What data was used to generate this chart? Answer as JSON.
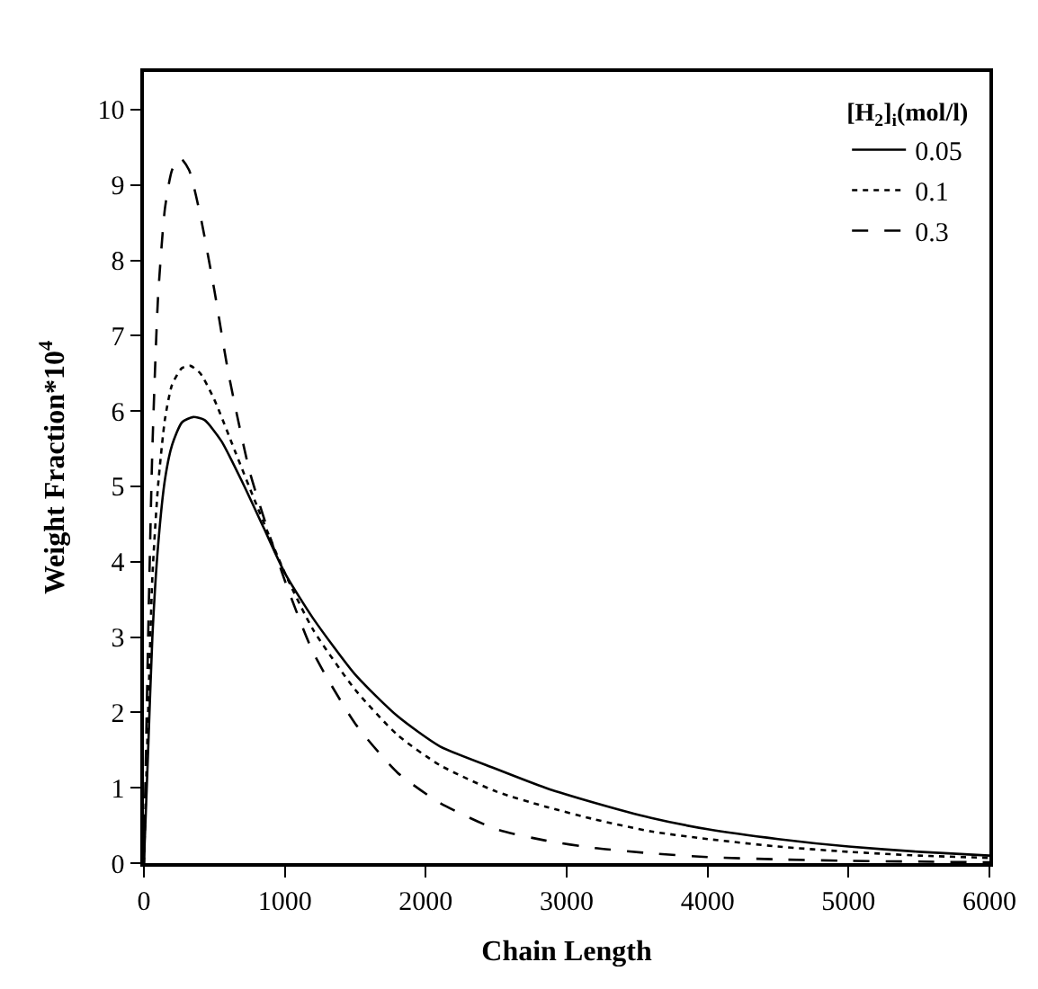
{
  "chart_data": {
    "type": "line",
    "xlabel": "Chain Length",
    "ylabel": "Weight Fraction*10$^{4}$",
    "legend_title": "[H$_{2}$]$_{i}$(mol/l)",
    "legend": "top right",
    "grid": false,
    "marker": "none",
    "xlim": [
      0,
      6000
    ],
    "xticks": [
      0,
      1000,
      2000,
      3000,
      4000,
      5000,
      6000
    ],
    "ylim": [
      0,
      10.5
    ],
    "yticks": [
      0,
      1,
      2,
      3,
      4,
      5,
      6,
      7,
      8,
      9,
      10
    ],
    "series": [
      {
        "name": "0.05",
        "color": "#000000",
        "line_style": "solid",
        "x": [
          0,
          30,
          60,
          100,
          150,
          200,
          270,
          350,
          430,
          550,
          700,
          850,
          1000,
          1200,
          1500,
          1800,
          2100,
          2500,
          2850,
          3200,
          3600,
          4000,
          4500,
          5000,
          5500,
          6000
        ],
        "values": [
          0,
          1.5,
          3.0,
          4.2,
          5.1,
          5.55,
          5.85,
          5.92,
          5.88,
          5.6,
          5.05,
          4.45,
          3.85,
          3.25,
          2.5,
          1.95,
          1.55,
          1.25,
          1.0,
          0.8,
          0.6,
          0.45,
          0.32,
          0.22,
          0.15,
          0.1
        ]
      },
      {
        "name": "0.1",
        "color": "#000000",
        "line_style": "dotted",
        "x": [
          0,
          30,
          60,
          100,
          150,
          200,
          270,
          330,
          400,
          500,
          650,
          800,
          1000,
          1200,
          1500,
          1800,
          2100,
          2500,
          2850,
          3200,
          3600,
          4000,
          4500,
          5000,
          5500,
          6000
        ],
        "values": [
          0,
          2.0,
          3.8,
          5.0,
          5.9,
          6.35,
          6.57,
          6.6,
          6.5,
          6.15,
          5.45,
          4.75,
          3.85,
          3.1,
          2.3,
          1.7,
          1.3,
          0.95,
          0.75,
          0.58,
          0.42,
          0.32,
          0.22,
          0.15,
          0.1,
          0.07
        ]
      },
      {
        "name": "0.3",
        "color": "#000000",
        "line_style": "dashed",
        "x": [
          0,
          30,
          60,
          100,
          150,
          200,
          257,
          320,
          400,
          500,
          600,
          750,
          900,
          1000,
          1200,
          1500,
          1800,
          2100,
          2500,
          2850,
          3200,
          3600,
          4000,
          4500,
          5000,
          5500,
          6000
        ],
        "values": [
          0,
          3.0,
          5.5,
          7.5,
          8.7,
          9.2,
          9.36,
          9.2,
          8.6,
          7.6,
          6.5,
          5.2,
          4.3,
          3.75,
          2.8,
          1.85,
          1.2,
          0.8,
          0.45,
          0.3,
          0.2,
          0.13,
          0.08,
          0.05,
          0.03,
          0.02,
          0.01
        ]
      }
    ]
  }
}
